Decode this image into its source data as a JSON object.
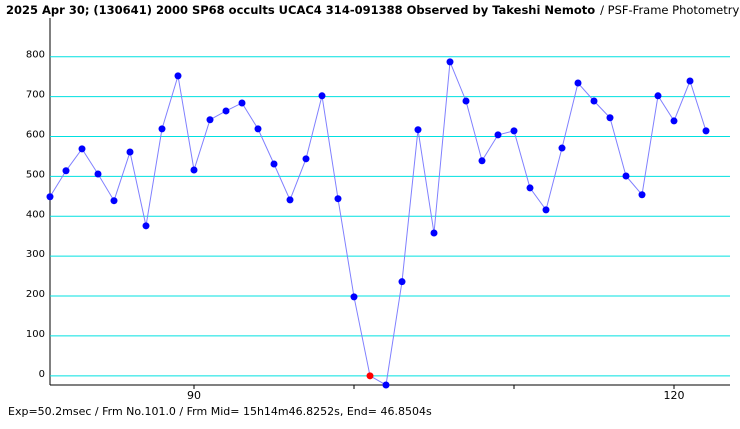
{
  "chart_data": {
    "type": "line",
    "title": "2025 Apr 30; (130641) 2000 SP68 occults UCAC4 314-091388 Observed by Takeshi Nemoto",
    "subtitle": "/ PSF-Frame Photometry /",
    "footer": "Exp=50.2msec / Frm No.101.0 / Frm Mid= 15h14m46.8252s, End= 46.8504s",
    "x": [
      81,
      82,
      83,
      84,
      85,
      86,
      87,
      88,
      89,
      90,
      91,
      92,
      93,
      94,
      95,
      96,
      97,
      98,
      99,
      100,
      101,
      102,
      103,
      104,
      105,
      106,
      107,
      108,
      109,
      110,
      111,
      112,
      113,
      114,
      115,
      116,
      117,
      118,
      119,
      120,
      121,
      122
    ],
    "series": [
      {
        "color": "#0000ff",
        "line_color": "#8080ff",
        "values": [
          449,
          514,
          569,
          506,
          439,
          561,
          376,
          619,
          752,
          516,
          642,
          664,
          684,
          619,
          531,
          441,
          544,
          702,
          444,
          198,
          0,
          -23,
          236,
          617,
          358,
          787,
          689,
          539,
          604,
          614,
          471,
          416,
          571,
          734,
          689,
          647,
          501,
          454,
          702,
          639,
          739,
          614
        ]
      }
    ],
    "highlight_index": 20,
    "highlight_color": "#ff0000",
    "xlim": [
      81,
      123.5
    ],
    "ylim": [
      -23,
      897
    ],
    "xticks": [
      90,
      {
        "value": 100,
        "label": null
      },
      {
        "value": 110,
        "label": null
      },
      120
    ],
    "yticks": [
      0,
      100,
      200,
      300,
      400,
      500,
      600,
      700,
      800
    ],
    "grid": true,
    "grid_color": "#00e0e0"
  }
}
